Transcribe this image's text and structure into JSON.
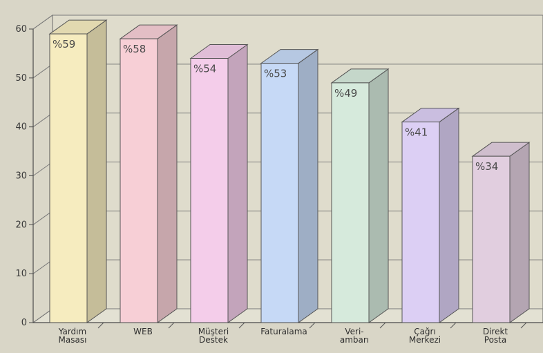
{
  "chart_data": {
    "type": "bar",
    "title": "",
    "xlabel": "",
    "ylabel": "",
    "ylim": [
      0,
      60
    ],
    "yticks": [
      0,
      10,
      20,
      30,
      40,
      50,
      60
    ],
    "grid": true,
    "legend": "none",
    "categories": [
      [
        "Yardım",
        "Masası"
      ],
      [
        "WEB"
      ],
      [
        "Müşteri",
        "Destek"
      ],
      [
        "Faturalama"
      ],
      [
        "Veri-",
        "ambarı"
      ],
      [
        "Çağrı",
        "Merkezi"
      ],
      [
        "Direkt",
        "Posta"
      ]
    ],
    "values": [
      59,
      58,
      54,
      53,
      49,
      41,
      34
    ],
    "value_labels": [
      "%59",
      "%58",
      "%54",
      "%53",
      "%49",
      "%41",
      "%34"
    ],
    "colors": [
      "#f6ecbf",
      "#f7cfd6",
      "#f4cdea",
      "#c6d9f6",
      "#d6eadc",
      "#dccff4",
      "#e1cedf"
    ]
  }
}
